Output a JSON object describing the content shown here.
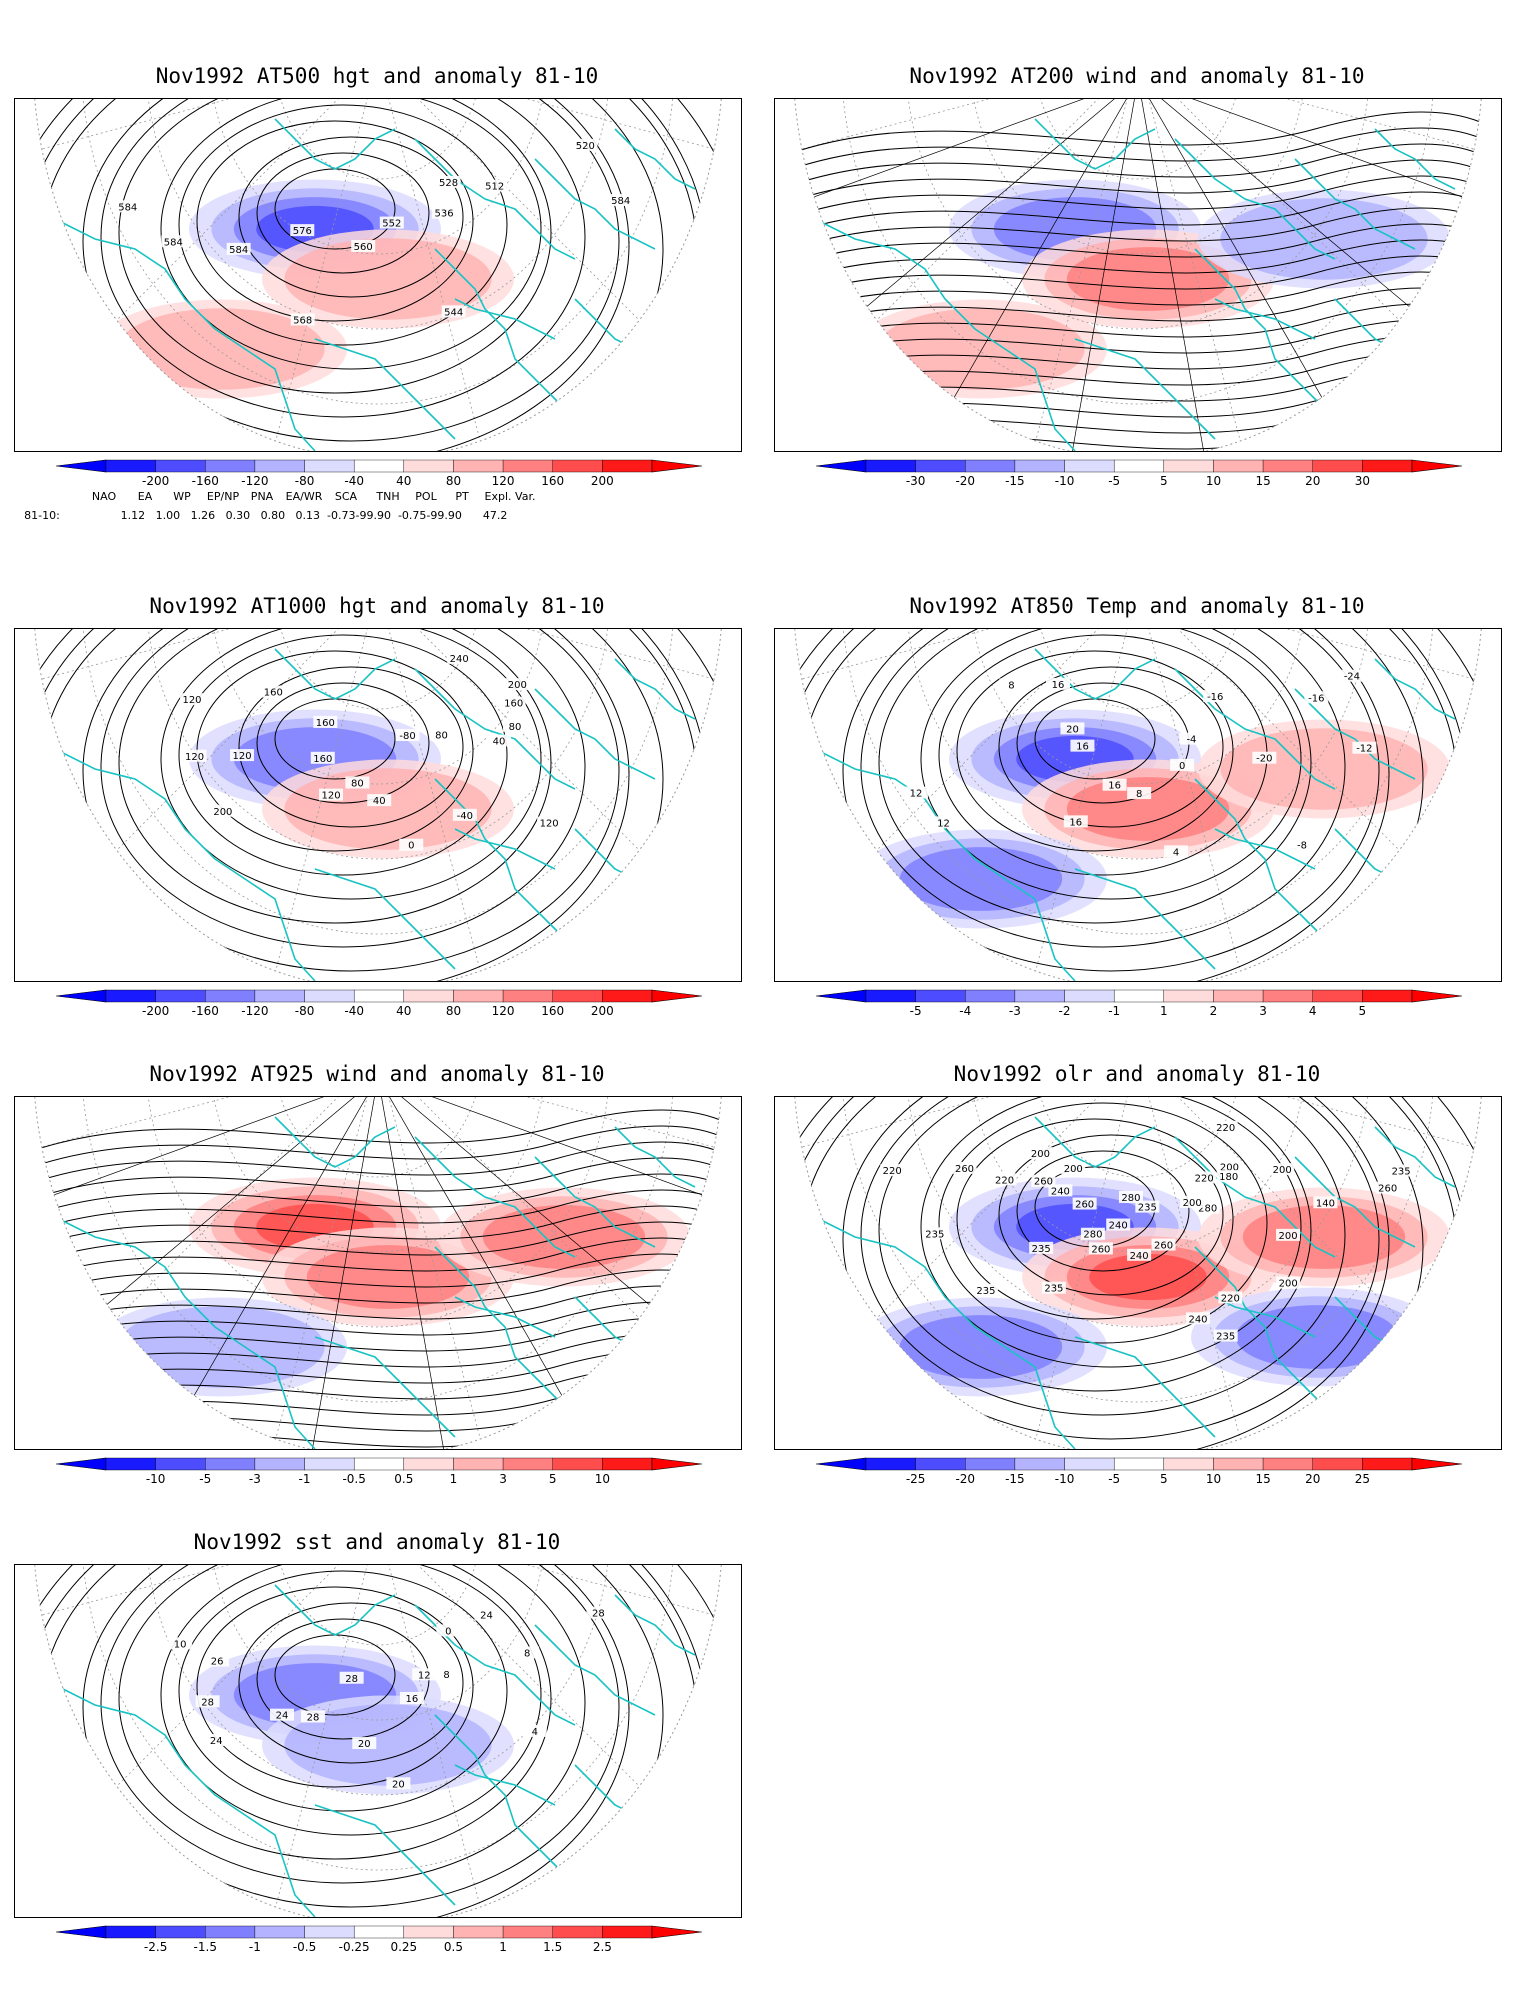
{
  "panels": [
    {
      "id": "p500",
      "title": "Nov1992 AT500 hgt and anomaly 81-10",
      "colorbar": [
        "-200",
        "-160",
        "-120",
        "-80",
        "-40",
        "40",
        "80",
        "120",
        "160",
        "200"
      ],
      "contour_labels": [
        "520",
        "584",
        "512",
        "528",
        "536",
        "544",
        "552",
        "560",
        "568",
        "576",
        "584",
        "584",
        "584"
      ],
      "anomaly_blobs": [
        {
          "sign": "neg",
          "strength": 0.8
        },
        {
          "sign": "pos",
          "strength": 0.4
        },
        {
          "sign": "pos",
          "strength": 0.3
        }
      ],
      "field": "isobars"
    },
    {
      "id": "p200",
      "title": "Nov1992 AT200 wind and anomaly 81-10",
      "colorbar": [
        "-30",
        "-20",
        "-15",
        "-10",
        "-5",
        "5",
        "10",
        "15",
        "20",
        "30"
      ],
      "contour_labels": [],
      "anomaly_blobs": [
        {
          "sign": "neg",
          "strength": 0.6
        },
        {
          "sign": "pos",
          "strength": 0.5
        },
        {
          "sign": "pos",
          "strength": 0.3
        },
        {
          "sign": "neg",
          "strength": 0.4
        }
      ],
      "field": "streamlines"
    },
    {
      "id": "p1000",
      "title": "Nov1992 AT1000 hgt and anomaly 81-10",
      "colorbar": [
        "-200",
        "-160",
        "-120",
        "-80",
        "-40",
        "40",
        "80",
        "120",
        "160",
        "200"
      ],
      "contour_labels": [
        "240",
        "200",
        "160",
        "80",
        "40",
        "120",
        "80",
        "-40",
        "-80",
        "0",
        "40",
        "80",
        "120",
        "160",
        "160",
        "200",
        "120",
        "120",
        "160",
        "120"
      ],
      "anomaly_blobs": [
        {
          "sign": "neg",
          "strength": 0.6
        },
        {
          "sign": "pos",
          "strength": 0.3
        }
      ],
      "field": "isobars"
    },
    {
      "id": "p850",
      "title": "Nov1992 AT850 Temp and anomaly 81-10",
      "colorbar": [
        "-5",
        "-4",
        "-3",
        "-2",
        "-1",
        "1",
        "2",
        "3",
        "4",
        "5"
      ],
      "contour_labels": [
        "-24",
        "-16",
        "-12",
        "-16",
        "-20",
        "-8",
        "-4",
        "0",
        "4",
        "8",
        "16",
        "16",
        "16",
        "20",
        "12",
        "12",
        "16",
        "8"
      ],
      "anomaly_blobs": [
        {
          "sign": "neg",
          "strength": 0.7
        },
        {
          "sign": "pos",
          "strength": 0.6
        },
        {
          "sign": "neg",
          "strength": 0.6
        },
        {
          "sign": "pos",
          "strength": 0.4
        }
      ],
      "field": "isobars"
    },
    {
      "id": "p925",
      "title": "Nov1992 AT925 wind and anomaly 81-10",
      "colorbar": [
        "-10",
        "-5",
        "-3",
        "-1",
        "-0.5",
        "0.5",
        "1",
        "3",
        "5",
        "10"
      ],
      "contour_labels": [],
      "anomaly_blobs": [
        {
          "sign": "pos",
          "strength": 0.7
        },
        {
          "sign": "pos",
          "strength": 0.5
        },
        {
          "sign": "neg",
          "strength": 0.4
        },
        {
          "sign": "pos",
          "strength": 0.5
        }
      ],
      "field": "streamlines"
    },
    {
      "id": "polr",
      "title": "Nov1992 olr and anomaly 81-10",
      "colorbar": [
        "-25",
        "-20",
        "-15",
        "-10",
        "-5",
        "5",
        "10",
        "15",
        "20",
        "25"
      ],
      "contour_labels": [
        "220",
        "235",
        "260",
        "200",
        "140",
        "200",
        "180",
        "200",
        "220",
        "200",
        "280",
        "200",
        "220",
        "235",
        "240",
        "260",
        "235",
        "240",
        "280",
        "240",
        "260",
        "280",
        "235",
        "260",
        "235",
        "235",
        "240",
        "200",
        "260",
        "235",
        "220",
        "200",
        "260",
        "220"
      ],
      "anomaly_blobs": [
        {
          "sign": "neg",
          "strength": 0.8
        },
        {
          "sign": "pos",
          "strength": 0.7
        },
        {
          "sign": "neg",
          "strength": 0.6
        },
        {
          "sign": "pos",
          "strength": 0.6
        },
        {
          "sign": "neg",
          "strength": 0.6
        }
      ],
      "field": "isobars"
    },
    {
      "id": "psst",
      "title": "Nov1992 sst and anomaly 81-10",
      "colorbar": [
        "-2.5",
        "-1.5",
        "-1",
        "-0.5",
        "-0.25",
        "0.25",
        "0.5",
        "1",
        "1.5",
        "2.5"
      ],
      "contour_labels": [
        "28",
        "24",
        "8",
        "0",
        "4",
        "8",
        "12",
        "16",
        "20",
        "20",
        "28",
        "28",
        "24",
        "24",
        "28",
        "26",
        "10"
      ],
      "anomaly_blobs": [
        {
          "sign": "neg",
          "strength": 0.5
        },
        {
          "sign": "neg",
          "strength": 0.35
        }
      ],
      "field": "isobars"
    }
  ],
  "indices": {
    "headers": [
      "NAO",
      "EA",
      "WP",
      "EP/NP",
      "PNA",
      "EA/WR",
      "SCA",
      "TNH",
      "POL",
      "PT",
      "Expl. Var."
    ],
    "row_label": "81-10:",
    "values": "1.12   1.00   1.26   0.30   0.80   0.13  -0.73-99.90  -0.75-99.90      47.2"
  },
  "colors": {
    "coast": "#19c3c3",
    "grid": "#999999",
    "contour": "#000000",
    "neg": [
      "#1a1aff",
      "#4d4dff",
      "#8080ff",
      "#b3b3ff",
      "#dcdcff"
    ],
    "pos": [
      "#ffdcdc",
      "#ffb3b3",
      "#ff8080",
      "#ff4d4d",
      "#ff1a1a"
    ]
  }
}
